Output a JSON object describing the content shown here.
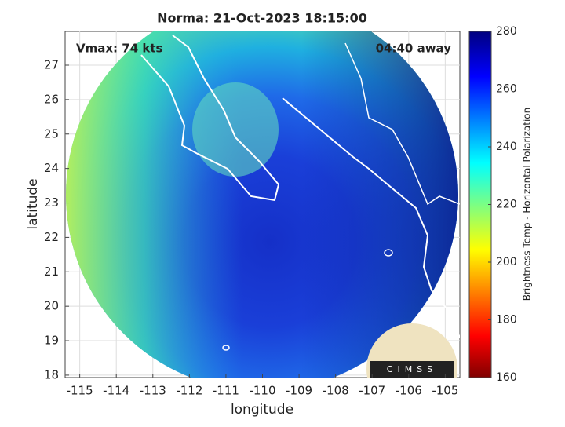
{
  "chart_data": {
    "type": "image",
    "title": "Norma: 21-Oct-2023 18:15:00",
    "xlabel": "longitude",
    "ylabel": "latitude",
    "annotations": [
      "Vmax: 74 kts",
      "04:40 away"
    ],
    "logo": "CIMSS",
    "xlim": [
      -115.4,
      -104.6
    ],
    "xticks": [
      -115,
      -114,
      -113,
      -112,
      -111,
      -110,
      -109,
      -108,
      -107,
      -106,
      -105
    ],
    "ylim": [
      17.93,
      27.98
    ],
    "yticks": [
      18,
      19,
      20,
      21,
      22,
      23,
      24,
      25,
      26,
      27
    ],
    "grid": true,
    "colorbar": {
      "label": "Brightness Temp - Horizontal Polarization",
      "lim": [
        160,
        280
      ],
      "ticks": [
        160,
        180,
        200,
        220,
        240,
        260,
        280
      ]
    }
  }
}
